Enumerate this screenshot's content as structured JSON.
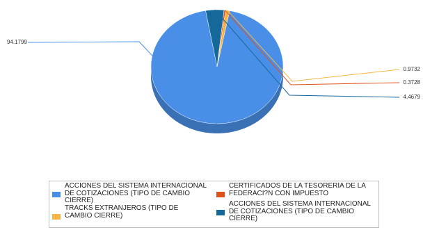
{
  "chart_data": {
    "type": "pie",
    "style": "3d",
    "series": [
      {
        "name": "ACCIONES DEL SISTEMA INTERNACIONAL DE COTIZACIONES (TIPO DE CAMBIO CIERRE)",
        "value": 94.1799,
        "label": "94.1799",
        "color": "#4a8fe7"
      },
      {
        "name": "TRACKS EXTRANJEROS (TIPO DE CAMBIO CIERRE)",
        "value": 0.9732,
        "label": "0.9732",
        "color": "#f6b444"
      },
      {
        "name": "CERTIFICADOS DE LA TESORERIA DE LA FEDERACI?N CON IMPUESTO",
        "value": 0.3728,
        "label": "0.3728",
        "color": "#e0501c"
      },
      {
        "name": "ACCIONES DEL SISTEMA INTERNACIONAL DE COTIZACIONES (TIPO DE CAMBIO CIERRE)",
        "value": 4.4679,
        "label": "4.4679",
        "color": "#15689a"
      }
    ],
    "legend_position": "bottom"
  },
  "legend": {
    "items": [
      {
        "text": "ACCIONES DEL SISTEMA INTERNACIONAL DE COTIZACIONES (TIPO DE CAMBIO CIERRE)",
        "color": "#4a8fe7"
      },
      {
        "text": "CERTIFICADOS DE LA TESORERIA DE LA FEDERACI?N CON IMPUESTO",
        "color": "#e0501c"
      },
      {
        "text": "TRACKS EXTRANJEROS (TIPO DE CAMBIO CIERRE)",
        "color": "#f6b444"
      },
      {
        "text": "ACCIONES DEL SISTEMA INTERNACIONAL DE COTIZACIONES (TIPO DE CAMBIO CIERRE)",
        "color": "#15689a"
      }
    ]
  }
}
